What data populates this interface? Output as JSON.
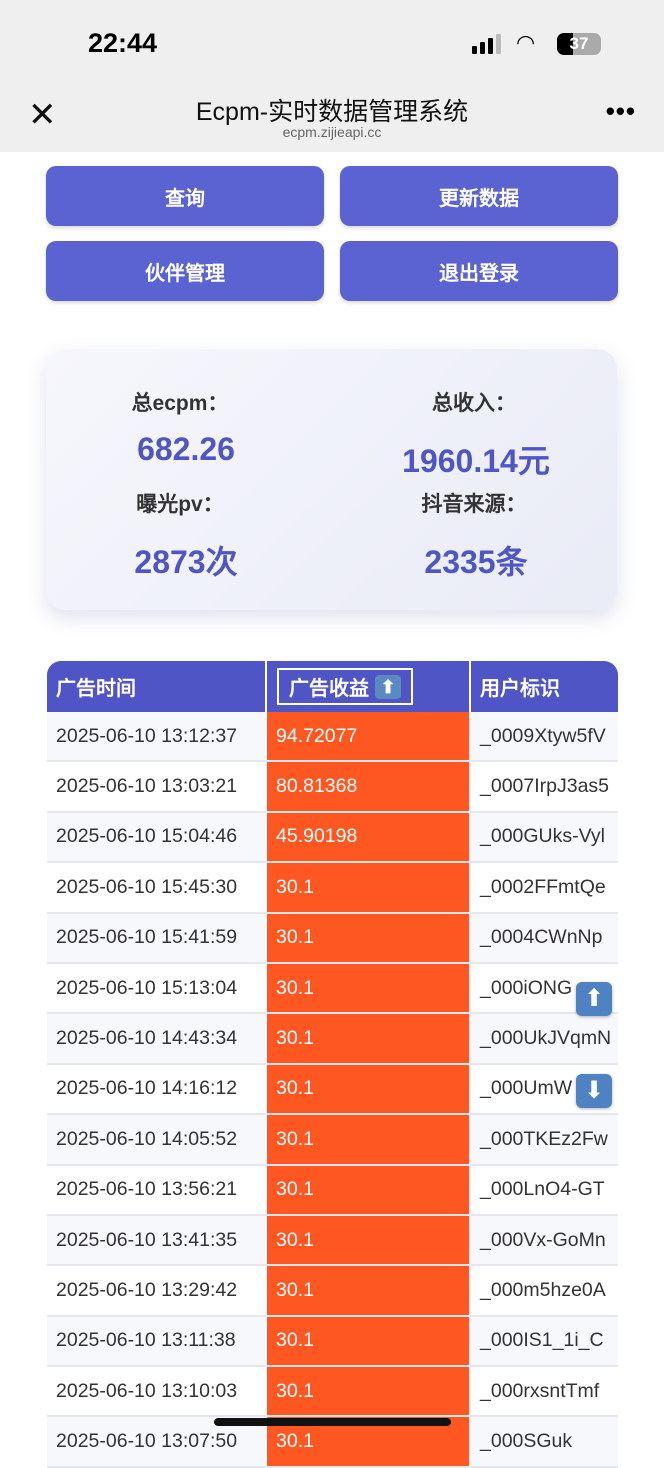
{
  "status_bar": {
    "time": "22:44",
    "battery": "37"
  },
  "browser": {
    "title": "Ecpm-实时数据管理系统",
    "url": "ecpm.zijieapi.cc"
  },
  "buttons": {
    "query": "查询",
    "update": "更新数据",
    "partners": "伙伴管理",
    "logout": "退出登录"
  },
  "stats": {
    "ecpm_label": "总ecpm：",
    "ecpm_value": "682.26",
    "income_label": "总收入：",
    "income_value": "1960.14元",
    "pv_label": "曝光pv：",
    "pv_value": "2873次",
    "source_label": "抖音来源：",
    "source_value": "2335条"
  },
  "table": {
    "headers": [
      "广告时间",
      "广告收益",
      "用户标识"
    ],
    "sort_icon": "up-arrow",
    "revenue_color": "#ff5722",
    "rows": [
      [
        "2025-06-10 13:12:37",
        "94.72077",
        "_0009Xtyw5fV"
      ],
      [
        "2025-06-10 13:03:21",
        "80.81368",
        "_0007IrpJ3as5"
      ],
      [
        "2025-06-10 15:04:46",
        "45.90198",
        "_000GUks-Vyl"
      ],
      [
        "2025-06-10 15:45:30",
        "30.1",
        "_0002FFmtQe"
      ],
      [
        "2025-06-10 15:41:59",
        "30.1",
        "_0004CWnNp"
      ],
      [
        "2025-06-10 15:13:04",
        "30.1",
        "_000iONG"
      ],
      [
        "2025-06-10 14:43:34",
        "30.1",
        "_000UkJVqmN"
      ],
      [
        "2025-06-10 14:16:12",
        "30.1",
        "_000UmW"
      ],
      [
        "2025-06-10 14:05:52",
        "30.1",
        "_000TKEz2Fw"
      ],
      [
        "2025-06-10 13:56:21",
        "30.1",
        "_000LnO4-GT"
      ],
      [
        "2025-06-10 13:41:35",
        "30.1",
        "_000Vx-GoMn"
      ],
      [
        "2025-06-10 13:29:42",
        "30.1",
        "_000m5hze0A"
      ],
      [
        "2025-06-10 13:11:38",
        "30.1",
        "_000IS1_1i_C"
      ],
      [
        "2025-06-10 13:10:03",
        "30.1",
        "_000rxsntTmf"
      ],
      [
        "2025-06-10 13:07:50",
        "30.1",
        "_000SGuk"
      ]
    ]
  }
}
